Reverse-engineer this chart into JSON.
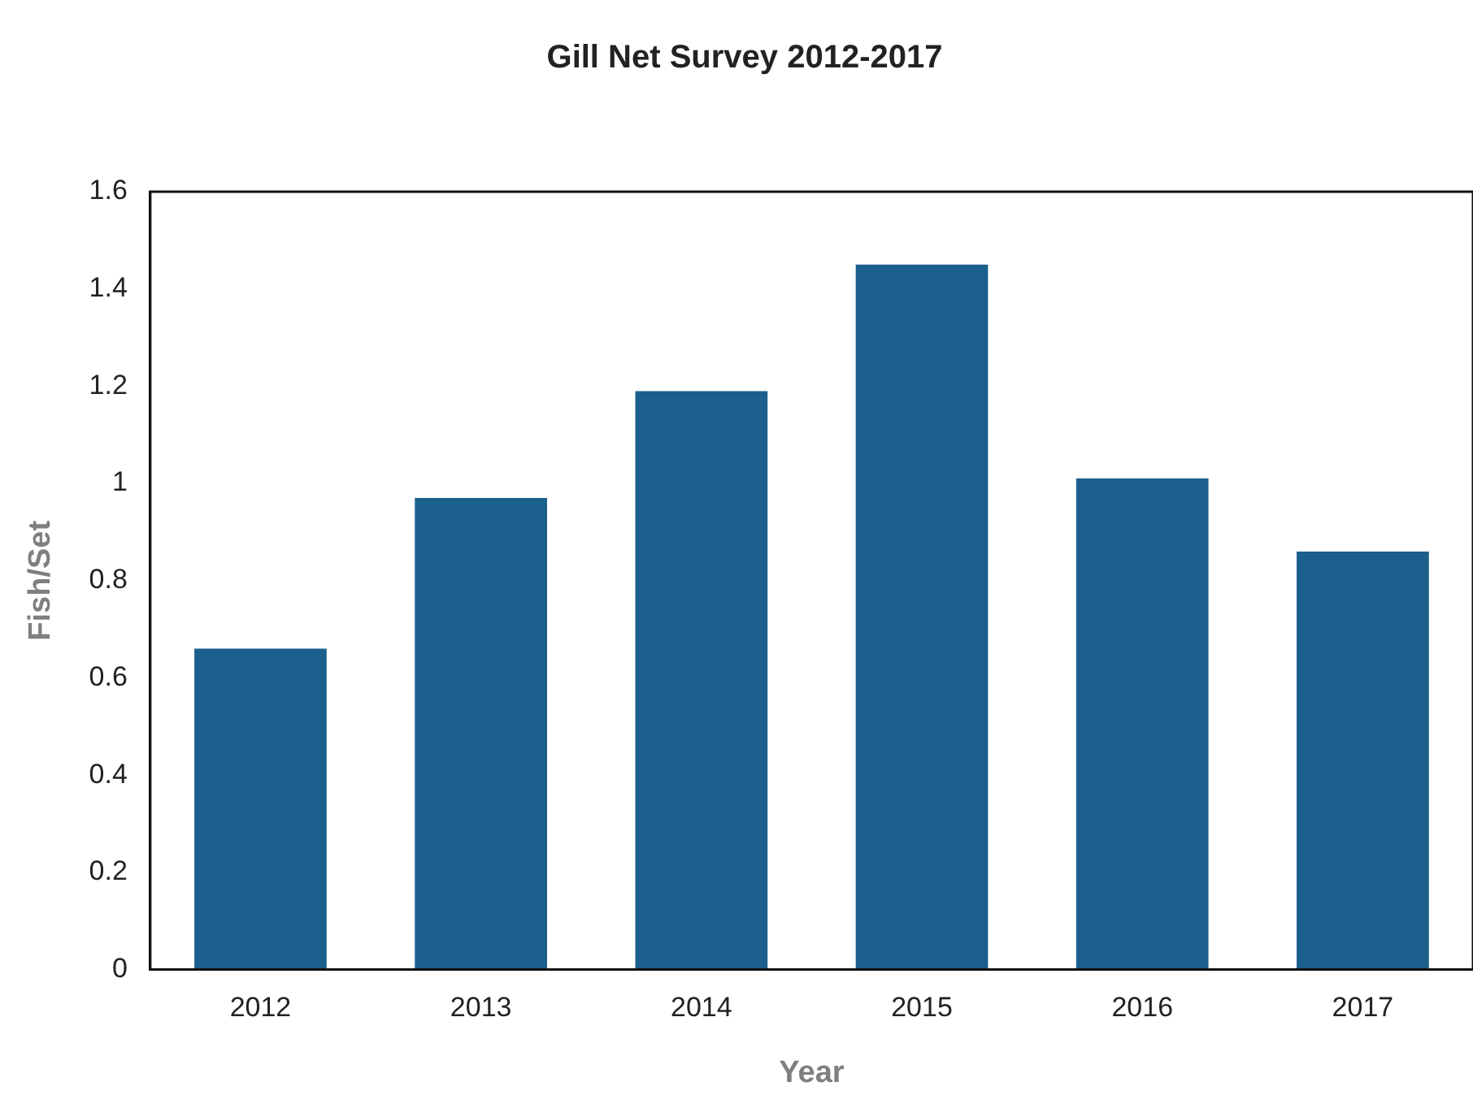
{
  "chart_data": {
    "type": "bar",
    "title": "Gill Net Survey 2012-2017",
    "xlabel": "Year",
    "ylabel": "Fish/Set",
    "categories": [
      "2012",
      "2013",
      "2014",
      "2015",
      "2016",
      "2017"
    ],
    "values": [
      0.66,
      0.97,
      1.19,
      1.45,
      1.01,
      0.86
    ],
    "color": "#1b5f8c",
    "ylim": [
      0,
      1.6
    ],
    "yticks": [
      0,
      0.2,
      0.4,
      0.6,
      0.8,
      1,
      1.2,
      1.4,
      1.6
    ],
    "grid": false,
    "legend": false
  }
}
